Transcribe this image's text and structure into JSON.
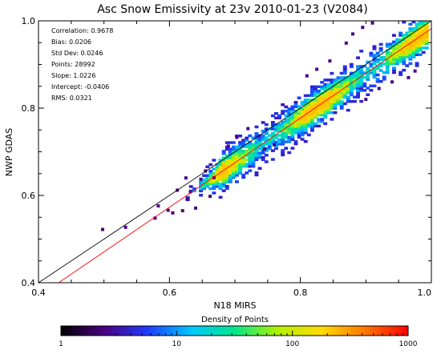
{
  "chart_data": {
    "type": "heatmap",
    "title": "Asc Snow Emissivity at 23v 2010-01-23 (V2084)",
    "xlabel": "N18 MIRS",
    "ylabel": "NWP GDAS",
    "xlim": [
      0.4,
      1.0
    ],
    "ylim": [
      0.4,
      1.0
    ],
    "x_ticks": [
      "0.4",
      "0.6",
      "0.8",
      "1.0"
    ],
    "y_ticks": [
      "0.4",
      "0.6",
      "0.8",
      "1.0"
    ],
    "stats": [
      "Correlation: 0.9678",
      "Bias: 0.0206",
      "Std Dev: 0.0246",
      "Points: 28992",
      "Slope: 1.0226",
      "Intercept: -0.0406",
      "RMS: 0.0321"
    ],
    "reference_lines": [
      {
        "kind": "one-to-one",
        "color": "#000000",
        "slope": 1.0,
        "intercept": 0.0
      },
      {
        "kind": "regression",
        "color": "#ff0000",
        "slope": 1.0226,
        "intercept": -0.0406
      }
    ],
    "density_band": {
      "center_slope": 1.0226,
      "center_intercept": -0.0406,
      "x_start": 0.62,
      "x_end": 0.995,
      "core_start": 0.68,
      "halo_width": 0.038,
      "core_width": 0.018
    },
    "outliers": [
      {
        "x": 0.498,
        "y": 0.522
      },
      {
        "x": 0.533,
        "y": 0.527
      },
      {
        "x": 0.578,
        "y": 0.548
      },
      {
        "x": 0.583,
        "y": 0.576
      },
      {
        "x": 0.598,
        "y": 0.566
      },
      {
        "x": 0.605,
        "y": 0.56
      },
      {
        "x": 0.62,
        "y": 0.565
      },
      {
        "x": 0.627,
        "y": 0.592
      },
      {
        "x": 0.612,
        "y": 0.612
      },
      {
        "x": 0.632,
        "y": 0.608
      },
      {
        "x": 0.64,
        "y": 0.571
      },
      {
        "x": 0.648,
        "y": 0.637
      },
      {
        "x": 0.625,
        "y": 0.64
      },
      {
        "x": 0.655,
        "y": 0.656
      },
      {
        "x": 0.662,
        "y": 0.598
      },
      {
        "x": 0.668,
        "y": 0.641
      },
      {
        "x": 0.69,
        "y": 0.713
      },
      {
        "x": 0.703,
        "y": 0.733
      },
      {
        "x": 0.72,
        "y": 0.753
      },
      {
        "x": 0.745,
        "y": 0.706
      },
      {
        "x": 0.76,
        "y": 0.716
      },
      {
        "x": 0.81,
        "y": 0.874
      },
      {
        "x": 0.825,
        "y": 0.889
      },
      {
        "x": 0.845,
        "y": 0.908
      },
      {
        "x": 0.87,
        "y": 0.949
      },
      {
        "x": 0.88,
        "y": 0.97
      },
      {
        "x": 0.895,
        "y": 0.985
      },
      {
        "x": 0.91,
        "y": 0.995
      },
      {
        "x": 0.9,
        "y": 0.82
      },
      {
        "x": 0.92,
        "y": 0.845
      },
      {
        "x": 0.94,
        "y": 0.86
      },
      {
        "x": 0.965,
        "y": 0.87
      },
      {
        "x": 0.975,
        "y": 0.885
      }
    ],
    "colorbar": {
      "label": "Density of Points",
      "ticks": [
        "1",
        "10",
        "100",
        "1000"
      ],
      "scale": "log",
      "range": [
        1,
        1000
      ],
      "colors": [
        "#000000",
        "#4b0082",
        "#1e3cff",
        "#00c8ff",
        "#00e68c",
        "#b4f000",
        "#ffdc00",
        "#ff7800",
        "#ff0000"
      ]
    }
  }
}
